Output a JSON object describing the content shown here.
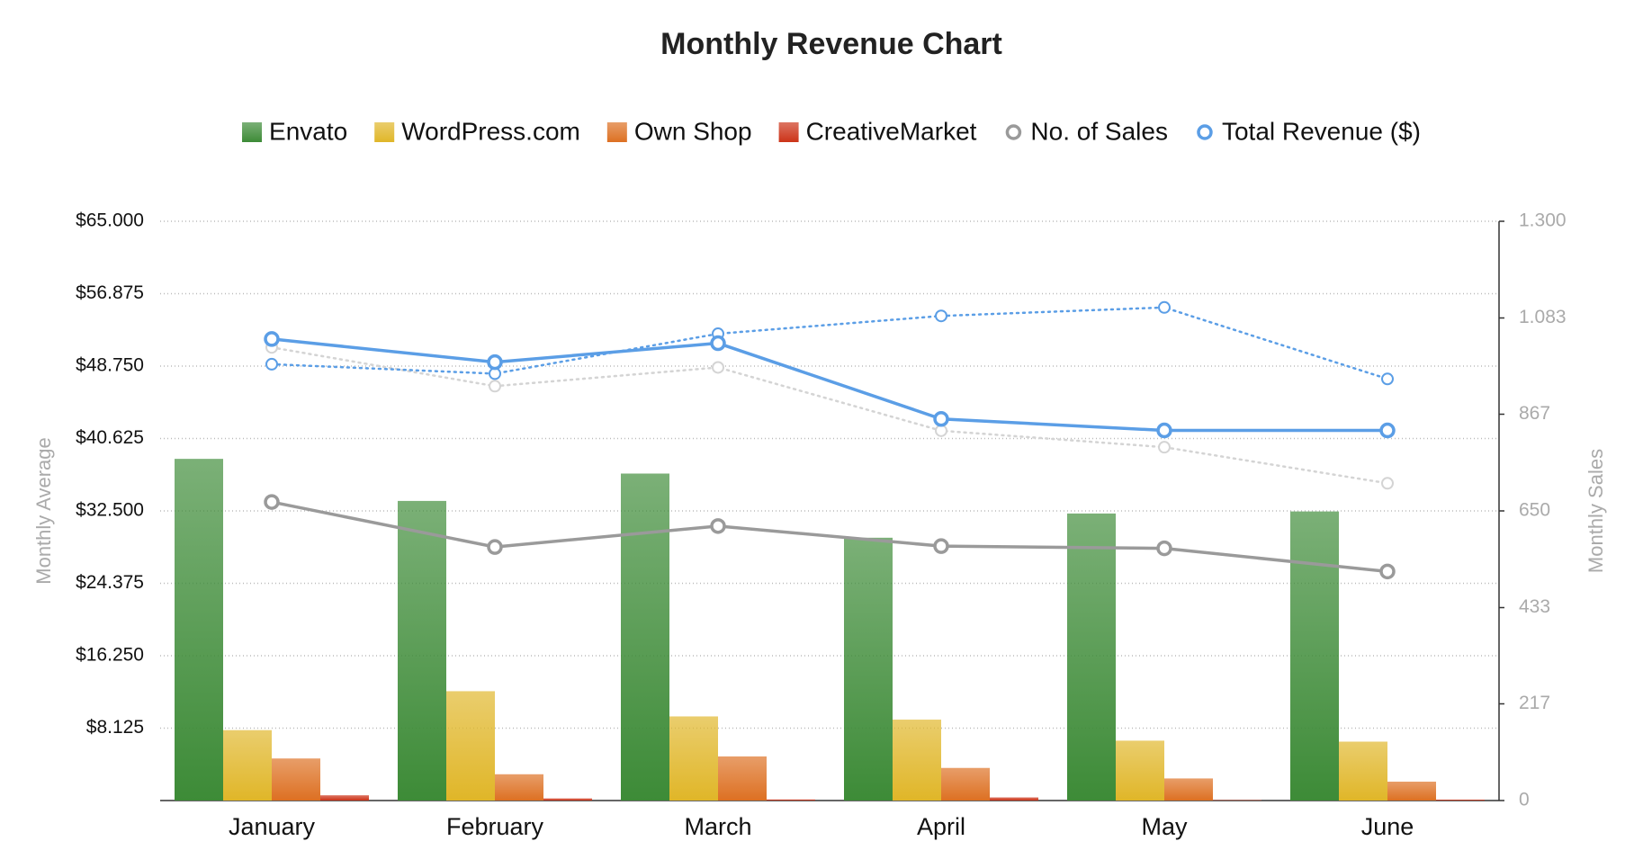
{
  "chart_data": {
    "type": "bar",
    "title": "Monthly Revenue Chart",
    "y_label": "Monthly Average",
    "y2_label": "Monthly Sales",
    "categories": [
      "January",
      "February",
      "March",
      "April",
      "May",
      "June"
    ],
    "ylim": [
      0,
      65000
    ],
    "yticks": [
      {
        "value": 8125,
        "label": "$8.125"
      },
      {
        "value": 16250,
        "label": "$16.250"
      },
      {
        "value": 24375,
        "label": "$24.375"
      },
      {
        "value": 32500,
        "label": "$32.500"
      },
      {
        "value": 40625,
        "label": "$40.625"
      },
      {
        "value": 48750,
        "label": "$48.750"
      },
      {
        "value": 56875,
        "label": "$56.875"
      },
      {
        "value": 65000,
        "label": "$65.000"
      }
    ],
    "y2lim": [
      0,
      1300
    ],
    "y2ticks": [
      0,
      217,
      433,
      650,
      867,
      {
        "value": 1083,
        "label": "1.083"
      },
      {
        "value": 1300,
        "label": "1.300"
      }
    ],
    "grid": true,
    "legend": "top",
    "series": [
      {
        "name": "Envato",
        "type": "bar",
        "color": "#3d8b37",
        "values": [
          38340,
          33620,
          36690,
          29490,
          32210,
          32440
        ]
      },
      {
        "name": "WordPress.com",
        "type": "bar",
        "color": "#e0b628",
        "values": [
          7900,
          12270,
          9440,
          9080,
          6720,
          6610
        ]
      },
      {
        "name": "Own Shop",
        "type": "bar",
        "color": "#dd7022",
        "values": [
          4720,
          2950,
          4950,
          3660,
          2480,
          2120
        ]
      },
      {
        "name": "CreativeMarket",
        "type": "bar",
        "color": "#cc3318",
        "values": [
          590,
          240,
          120,
          350,
          50,
          100
        ]
      },
      {
        "type": "line",
        "axis": "y2",
        "dash": true,
        "color": "#d4d4d4",
        "values": [
          1017,
          930,
          972,
          830,
          793,
          712
        ]
      },
      {
        "type": "line",
        "dash": true,
        "color": "#5b9ee6",
        "values": [
          48960,
          47900,
          52380,
          54380,
          55330,
          47310
        ]
      },
      {
        "name": "No. of Sales",
        "type": "line",
        "axis": "y2",
        "color": "#9a9a9a",
        "values": [
          670,
          569,
          616,
          571,
          566,
          514
        ]
      },
      {
        "name": "Total Revenue ($)",
        "type": "line",
        "color": "#5b9ee6",
        "values": [
          51790,
          49190,
          51320,
          42820,
          41530,
          41530
        ]
      }
    ]
  }
}
